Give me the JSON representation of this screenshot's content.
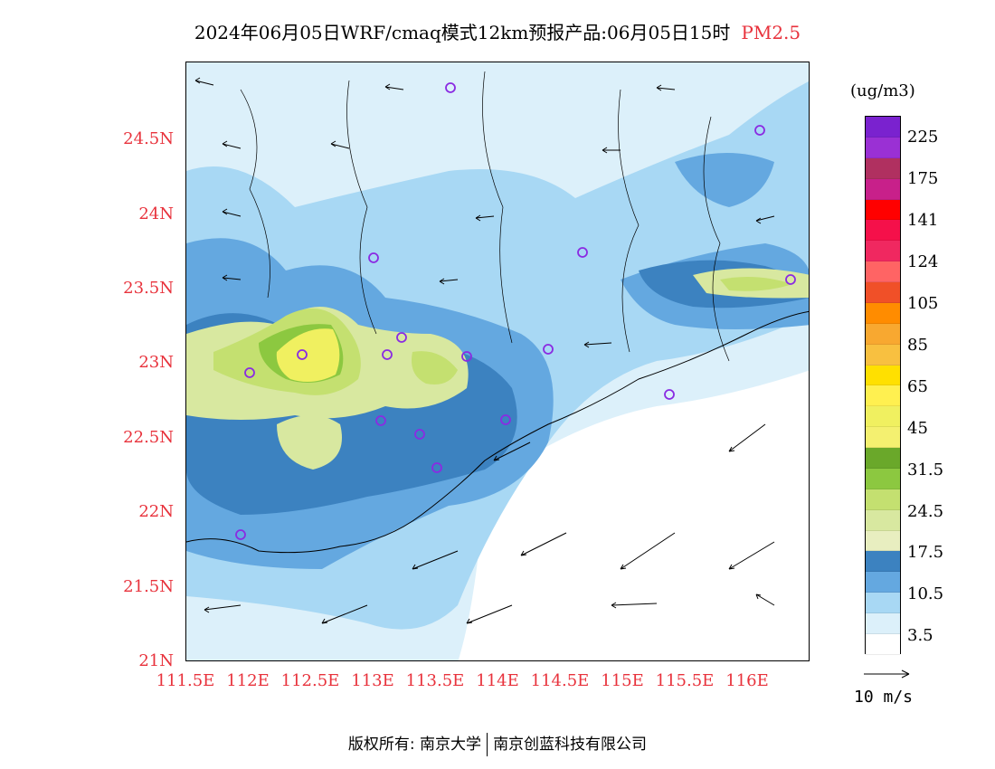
{
  "title": {
    "main": "2024年06月05日WRF/cmaq模式12km预报产品:06月05日15时",
    "pollutant": "PM2.5"
  },
  "axes": {
    "y_ticks": [
      "24.5N",
      "24N",
      "23.5N",
      "23N",
      "22.5N",
      "22N",
      "21.5N",
      "21N"
    ],
    "x_ticks": [
      "111.5E",
      "112E",
      "112.5E",
      "113E",
      "113.5E",
      "114E",
      "114.5E",
      "115E",
      "115.5E",
      "116E"
    ]
  },
  "legend": {
    "unit": "(ug/m3)",
    "labels": [
      "225",
      "175",
      "141",
      "124",
      "105",
      "85",
      "65",
      "45",
      "31.5",
      "24.5",
      "17.5",
      "10.5",
      "3.5"
    ],
    "colors": [
      "#7a22cf",
      "#9a30d4",
      "#b03060",
      "#c8208a",
      "#ff0000",
      "#f5104a",
      "#f02860",
      "#ff6464",
      "#f05028",
      "#ff8c00",
      "#f8a830",
      "#f8c040",
      "#ffe000",
      "#fff050",
      "#f0f060",
      "#f4f070",
      "#6aa82a",
      "#8cc840",
      "#c4e070",
      "#d8e8a0",
      "#e8eec0",
      "#3c82c0",
      "#64a8e0",
      "#a8d8f4",
      "#dcf0fa",
      "#ffffff"
    ],
    "wind_ref": "10 m/s"
  },
  "copyright": {
    "left": "版权所有: 南京大学",
    "right": "南京创蓝科技有限公司"
  },
  "colors": {
    "label_red": "#e8323c"
  }
}
